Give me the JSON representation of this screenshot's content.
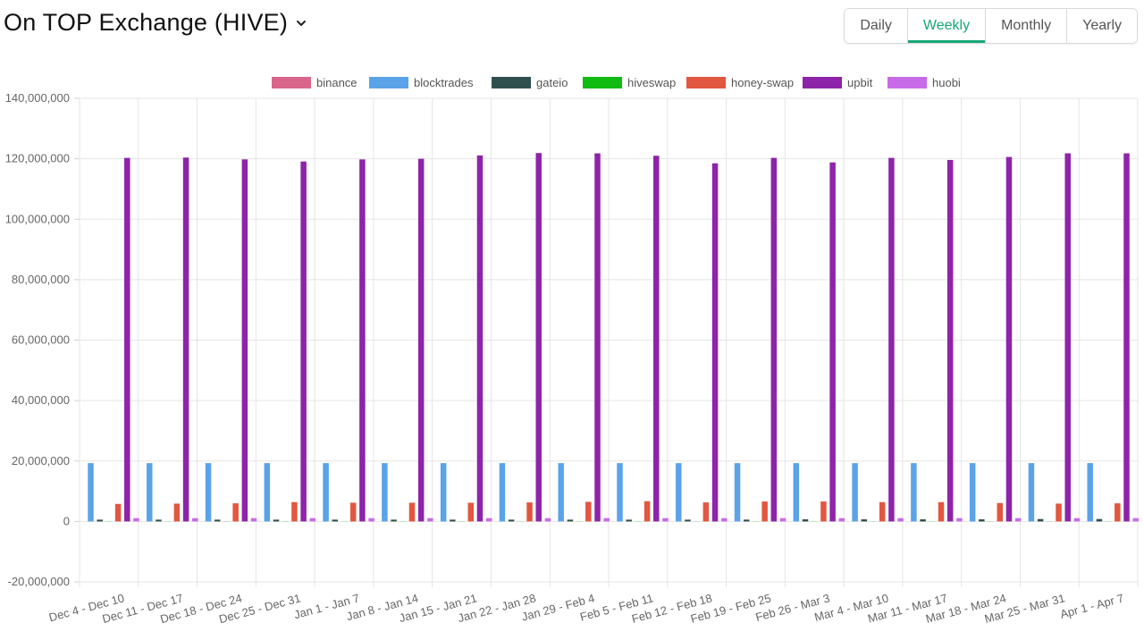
{
  "header": {
    "title": "On TOP Exchange (HIVE)",
    "tabs": [
      "Daily",
      "Weekly",
      "Monthly",
      "Yearly"
    ],
    "active_tab": "Weekly"
  },
  "colors": {
    "accent": "#17a673",
    "binance": "#d9658a",
    "blocktrades": "#5aa3e8",
    "gateio": "#2f4f4f",
    "hiveswap": "#11bb11",
    "honey-swap": "#e2573f",
    "upbit": "#8e24aa",
    "huobi": "#c86be8"
  },
  "chart_data": {
    "type": "bar",
    "title": "",
    "xlabel": "",
    "ylabel": "",
    "ylim": [
      -20000000,
      140000000
    ],
    "yticks": [
      140000000,
      120000000,
      100000000,
      80000000,
      60000000,
      40000000,
      20000000,
      0,
      -20000000
    ],
    "ytick_labels": [
      "140,000,000",
      "120,000,000",
      "100,000,000",
      "80,000,000",
      "60,000,000",
      "40,000,000",
      "20,000,000",
      "0",
      "-20,000,000"
    ],
    "legend_position": "top",
    "grid": true,
    "categories": [
      "Dec 4 - Dec 10",
      "Dec 11 - Dec 17",
      "Dec 18 - Dec 24",
      "Dec 25 - Dec 31",
      "Jan 1 - Jan 7",
      "Jan 8 - Jan 14",
      "Jan 15 - Jan 21",
      "Jan 22 - Jan 28",
      "Jan 29 - Feb 4",
      "Feb 5 - Feb 11",
      "Feb 12 - Feb 18",
      "Feb 19 - Feb 25",
      "Feb 26 - Mar 3",
      "Mar 4 - Mar 10",
      "Mar 11 - Mar 17",
      "Mar 18 - Mar 24",
      "Mar 25 - Mar 31",
      "Apr 1 - Apr 7"
    ],
    "series": [
      {
        "name": "binance",
        "values": [
          0,
          0,
          0,
          0,
          0,
          0,
          0,
          0,
          0,
          0,
          0,
          0,
          0,
          0,
          0,
          0,
          0,
          0
        ]
      },
      {
        "name": "blocktrades",
        "values": [
          19300000,
          19300000,
          19300000,
          19300000,
          19300000,
          19300000,
          19300000,
          19300000,
          19300000,
          19300000,
          19300000,
          19300000,
          19300000,
          19300000,
          19300000,
          19300000,
          19300000,
          19300000
        ]
      },
      {
        "name": "gateio",
        "values": [
          600000,
          600000,
          600000,
          600000,
          600000,
          600000,
          600000,
          600000,
          600000,
          600000,
          600000,
          600000,
          700000,
          700000,
          700000,
          700000,
          800000,
          800000
        ]
      },
      {
        "name": "hiveswap",
        "values": [
          50000,
          50000,
          50000,
          50000,
          50000,
          50000,
          50000,
          50000,
          50000,
          50000,
          50000,
          50000,
          50000,
          50000,
          50000,
          50000,
          50000,
          50000
        ]
      },
      {
        "name": "honey-swap",
        "values": [
          5800000,
          5900000,
          6000000,
          6400000,
          6200000,
          6200000,
          6200000,
          6300000,
          6500000,
          6700000,
          6300000,
          6600000,
          6600000,
          6400000,
          6400000,
          6100000,
          5900000,
          6000000
        ]
      },
      {
        "name": "upbit",
        "values": [
          120300000,
          120400000,
          119800000,
          119100000,
          119800000,
          120000000,
          121100000,
          121900000,
          121800000,
          121000000,
          118500000,
          120300000,
          118800000,
          120300000,
          119600000,
          120600000,
          121800000,
          121800000
        ]
      },
      {
        "name": "huobi",
        "values": [
          1100000,
          1100000,
          1100000,
          1100000,
          1100000,
          1100000,
          1100000,
          1100000,
          1100000,
          1100000,
          1100000,
          1100000,
          1100000,
          1100000,
          1100000,
          1100000,
          1100000,
          1100000
        ]
      }
    ]
  }
}
